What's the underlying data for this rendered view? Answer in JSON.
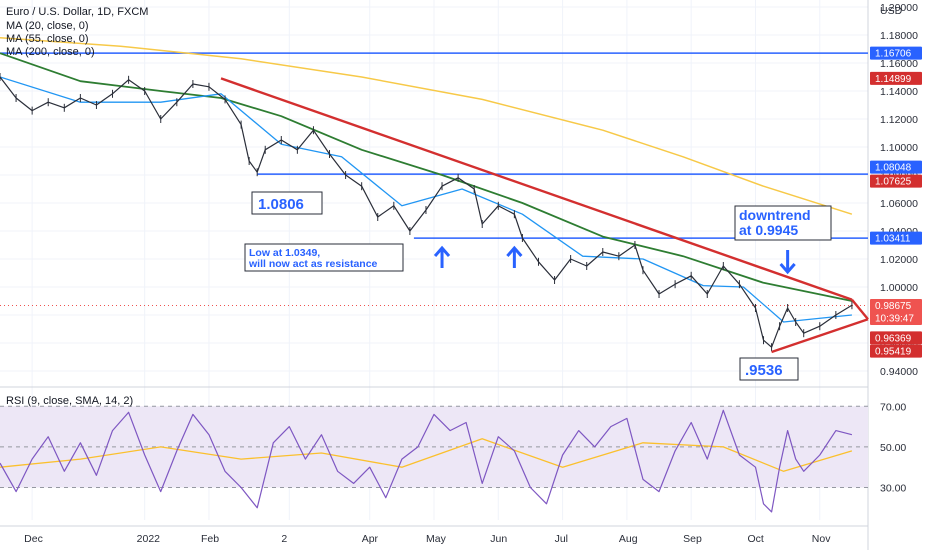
{
  "chart_data": {
    "type": "line",
    "title": "Euro / U.S. Dollar, 1D, FXCM",
    "indicators": [
      "MA (20, close, 0)",
      "MA (55, close, 0)",
      "MA (200, close, 0)"
    ],
    "currency": "USD",
    "x_ticks": [
      "Dec",
      "2022",
      "Feb",
      "2",
      "Apr",
      "May",
      "Jun",
      "Jul",
      "Aug",
      "Sep",
      "Oct",
      "Nov"
    ],
    "y_ticks": [
      "1.20000",
      "1.18000",
      "1.16000",
      "1.14000",
      "1.12000",
      "1.10000",
      "1.08000",
      "1.06000",
      "1.04000",
      "1.02000",
      "1.00000",
      "0.98000",
      "0.96000",
      "0.94000"
    ],
    "ylim": [
      0.93,
      1.205
    ],
    "price_series": [
      {
        "t": 0,
        "y": 1.15
      },
      {
        "t": 4,
        "y": 1.135
      },
      {
        "t": 8,
        "y": 1.126
      },
      {
        "t": 12,
        "y": 1.132
      },
      {
        "t": 16,
        "y": 1.128
      },
      {
        "t": 20,
        "y": 1.135
      },
      {
        "t": 24,
        "y": 1.13
      },
      {
        "t": 28,
        "y": 1.138
      },
      {
        "t": 32,
        "y": 1.148
      },
      {
        "t": 36,
        "y": 1.14
      },
      {
        "t": 40,
        "y": 1.12
      },
      {
        "t": 44,
        "y": 1.132
      },
      {
        "t": 48,
        "y": 1.145
      },
      {
        "t": 52,
        "y": 1.143
      },
      {
        "t": 56,
        "y": 1.134
      },
      {
        "t": 60,
        "y": 1.116
      },
      {
        "t": 62,
        "y": 1.09
      },
      {
        "t": 64,
        "y": 1.082
      },
      {
        "t": 66,
        "y": 1.098
      },
      {
        "t": 70,
        "y": 1.105
      },
      {
        "t": 74,
        "y": 1.098
      },
      {
        "t": 78,
        "y": 1.112
      },
      {
        "t": 82,
        "y": 1.095
      },
      {
        "t": 86,
        "y": 1.08
      },
      {
        "t": 90,
        "y": 1.072
      },
      {
        "t": 94,
        "y": 1.05
      },
      {
        "t": 98,
        "y": 1.058
      },
      {
        "t": 102,
        "y": 1.04
      },
      {
        "t": 106,
        "y": 1.055
      },
      {
        "t": 110,
        "y": 1.072
      },
      {
        "t": 114,
        "y": 1.078
      },
      {
        "t": 118,
        "y": 1.07
      },
      {
        "t": 120,
        "y": 1.045
      },
      {
        "t": 124,
        "y": 1.058
      },
      {
        "t": 128,
        "y": 1.052
      },
      {
        "t": 130,
        "y": 1.035
      },
      {
        "t": 134,
        "y": 1.018
      },
      {
        "t": 138,
        "y": 1.005
      },
      {
        "t": 142,
        "y": 1.02
      },
      {
        "t": 146,
        "y": 1.015
      },
      {
        "t": 150,
        "y": 1.025
      },
      {
        "t": 154,
        "y": 1.022
      },
      {
        "t": 158,
        "y": 1.03
      },
      {
        "t": 160,
        "y": 1.012
      },
      {
        "t": 164,
        "y": 0.995
      },
      {
        "t": 168,
        "y": 1.002
      },
      {
        "t": 172,
        "y": 1.008
      },
      {
        "t": 176,
        "y": 0.995
      },
      {
        "t": 180,
        "y": 1.015
      },
      {
        "t": 184,
        "y": 1.002
      },
      {
        "t": 188,
        "y": 0.985
      },
      {
        "t": 190,
        "y": 0.962
      },
      {
        "t": 192,
        "y": 0.957
      },
      {
        "t": 194,
        "y": 0.972
      },
      {
        "t": 196,
        "y": 0.985
      },
      {
        "t": 198,
        "y": 0.975
      },
      {
        "t": 200,
        "y": 0.967
      },
      {
        "t": 204,
        "y": 0.972
      },
      {
        "t": 208,
        "y": 0.98
      },
      {
        "t": 212,
        "y": 0.987
      }
    ],
    "ma_20": [
      {
        "t": 0,
        "y": 1.15
      },
      {
        "t": 20,
        "y": 1.132
      },
      {
        "t": 40,
        "y": 1.132
      },
      {
        "t": 55,
        "y": 1.138
      },
      {
        "t": 70,
        "y": 1.102
      },
      {
        "t": 85,
        "y": 1.093
      },
      {
        "t": 100,
        "y": 1.058
      },
      {
        "t": 115,
        "y": 1.07
      },
      {
        "t": 130,
        "y": 1.052
      },
      {
        "t": 145,
        "y": 1.022
      },
      {
        "t": 160,
        "y": 1.02
      },
      {
        "t": 175,
        "y": 1.001
      },
      {
        "t": 185,
        "y": 1.0
      },
      {
        "t": 195,
        "y": 0.975
      },
      {
        "t": 212,
        "y": 0.98
      }
    ],
    "ma_55": [
      {
        "t": 0,
        "y": 1.167
      },
      {
        "t": 20,
        "y": 1.147
      },
      {
        "t": 40,
        "y": 1.14
      },
      {
        "t": 55,
        "y": 1.135
      },
      {
        "t": 70,
        "y": 1.122
      },
      {
        "t": 90,
        "y": 1.098
      },
      {
        "t": 110,
        "y": 1.08
      },
      {
        "t": 130,
        "y": 1.06
      },
      {
        "t": 150,
        "y": 1.036
      },
      {
        "t": 170,
        "y": 1.022
      },
      {
        "t": 190,
        "y": 1.003
      },
      {
        "t": 212,
        "y": 0.99
      }
    ],
    "ma_200": [
      {
        "t": 0,
        "y": 1.178
      },
      {
        "t": 30,
        "y": 1.172
      },
      {
        "t": 60,
        "y": 1.163
      },
      {
        "t": 90,
        "y": 1.15
      },
      {
        "t": 120,
        "y": 1.134
      },
      {
        "t": 150,
        "y": 1.112
      },
      {
        "t": 170,
        "y": 1.093
      },
      {
        "t": 190,
        "y": 1.072
      },
      {
        "t": 212,
        "y": 1.052
      }
    ],
    "rsi": {
      "label": "RSI (9, close, SMA, 14, 2)",
      "y_ticks": [
        "70.00",
        "50.00",
        "30.00"
      ],
      "ylim": [
        14,
        78
      ],
      "levels": [
        70,
        50,
        30
      ],
      "values": [
        {
          "t": 0,
          "y": 42
        },
        {
          "t": 4,
          "y": 28
        },
        {
          "t": 8,
          "y": 44
        },
        {
          "t": 12,
          "y": 55
        },
        {
          "t": 16,
          "y": 38
        },
        {
          "t": 20,
          "y": 52
        },
        {
          "t": 24,
          "y": 36
        },
        {
          "t": 28,
          "y": 58
        },
        {
          "t": 32,
          "y": 67
        },
        {
          "t": 36,
          "y": 46
        },
        {
          "t": 40,
          "y": 28
        },
        {
          "t": 44,
          "y": 48
        },
        {
          "t": 48,
          "y": 66
        },
        {
          "t": 52,
          "y": 56
        },
        {
          "t": 56,
          "y": 38
        },
        {
          "t": 60,
          "y": 30
        },
        {
          "t": 64,
          "y": 20
        },
        {
          "t": 68,
          "y": 52
        },
        {
          "t": 72,
          "y": 60
        },
        {
          "t": 76,
          "y": 44
        },
        {
          "t": 80,
          "y": 56
        },
        {
          "t": 84,
          "y": 38
        },
        {
          "t": 88,
          "y": 32
        },
        {
          "t": 92,
          "y": 40
        },
        {
          "t": 96,
          "y": 25
        },
        {
          "t": 100,
          "y": 44
        },
        {
          "t": 104,
          "y": 50
        },
        {
          "t": 108,
          "y": 66
        },
        {
          "t": 112,
          "y": 58
        },
        {
          "t": 116,
          "y": 62
        },
        {
          "t": 120,
          "y": 32
        },
        {
          "t": 124,
          "y": 55
        },
        {
          "t": 128,
          "y": 48
        },
        {
          "t": 132,
          "y": 30
        },
        {
          "t": 136,
          "y": 22
        },
        {
          "t": 140,
          "y": 46
        },
        {
          "t": 144,
          "y": 58
        },
        {
          "t": 148,
          "y": 50
        },
        {
          "t": 152,
          "y": 60
        },
        {
          "t": 156,
          "y": 64
        },
        {
          "t": 160,
          "y": 34
        },
        {
          "t": 164,
          "y": 28
        },
        {
          "t": 168,
          "y": 48
        },
        {
          "t": 172,
          "y": 62
        },
        {
          "t": 176,
          "y": 44
        },
        {
          "t": 180,
          "y": 68
        },
        {
          "t": 184,
          "y": 46
        },
        {
          "t": 188,
          "y": 40
        },
        {
          "t": 190,
          "y": 22
        },
        {
          "t": 192,
          "y": 18
        },
        {
          "t": 194,
          "y": 40
        },
        {
          "t": 196,
          "y": 58
        },
        {
          "t": 198,
          "y": 44
        },
        {
          "t": 200,
          "y": 38
        },
        {
          "t": 204,
          "y": 46
        },
        {
          "t": 208,
          "y": 58
        },
        {
          "t": 212,
          "y": 56
        }
      ],
      "sma": [
        {
          "t": 0,
          "y": 40
        },
        {
          "t": 20,
          "y": 44
        },
        {
          "t": 40,
          "y": 50
        },
        {
          "t": 60,
          "y": 44
        },
        {
          "t": 80,
          "y": 47
        },
        {
          "t": 100,
          "y": 40
        },
        {
          "t": 120,
          "y": 54
        },
        {
          "t": 140,
          "y": 40
        },
        {
          "t": 160,
          "y": 52
        },
        {
          "t": 180,
          "y": 50
        },
        {
          "t": 195,
          "y": 38
        },
        {
          "t": 212,
          "y": 48
        }
      ]
    },
    "horizontal_levels": [
      1.16706,
      1.0806,
      1.0349
    ],
    "trendline_points": [
      {
        "t": 55,
        "y": 1.149
      },
      {
        "t": 212,
        "y": 0.991
      }
    ],
    "support_line_points": [
      {
        "t": 192,
        "y": 0.9536
      },
      {
        "t": 216,
        "y": 0.977
      }
    ],
    "annotations": [
      {
        "text": "1.0806",
        "t": 70,
        "y": 1.068
      },
      {
        "text": "Low at 1.0349,",
        "t": 62,
        "y": 1.032
      },
      {
        "text": "will now act as resistance",
        "t": 62,
        "y": 1.022
      },
      {
        "text": "downtrend",
        "t": 184,
        "y": 1.058
      },
      {
        "text": "at 0.9945",
        "t": 184,
        "y": 1.046
      },
      {
        "text": ".9536",
        "t": 186,
        "y": 0.942
      }
    ],
    "arrows": [
      {
        "direction": "up",
        "t": 110
      },
      {
        "direction": "up",
        "t": 128
      },
      {
        "direction": "down",
        "t": 196
      }
    ],
    "price_tags": [
      {
        "value": "1.16706",
        "color": "#2962ff"
      },
      {
        "value": "1.14899",
        "color": "#d32f2f"
      },
      {
        "value": "1.08048",
        "color": "#2962ff"
      },
      {
        "value": "1.07625",
        "color": "#d32f2f"
      },
      {
        "value": "1.03411",
        "color": "#2962ff"
      },
      {
        "value": "0.98675",
        "color": "#ef5350"
      },
      {
        "value": "0.96369",
        "color": "#d32f2f"
      },
      {
        "value": "0.95419",
        "color": "#d32f2f"
      }
    ],
    "countdown": "10:39:47",
    "colors": {
      "price": "#2a2e39",
      "ma20": "#2196f3",
      "ma55": "#2e7d32",
      "ma200": "#f7c948",
      "trendline": "#d32f2f",
      "level": "#2962ff",
      "rsi": "#7e57c2",
      "rsi_sma": "#fbc02d",
      "rsi_band": "#ede7f6"
    }
  }
}
